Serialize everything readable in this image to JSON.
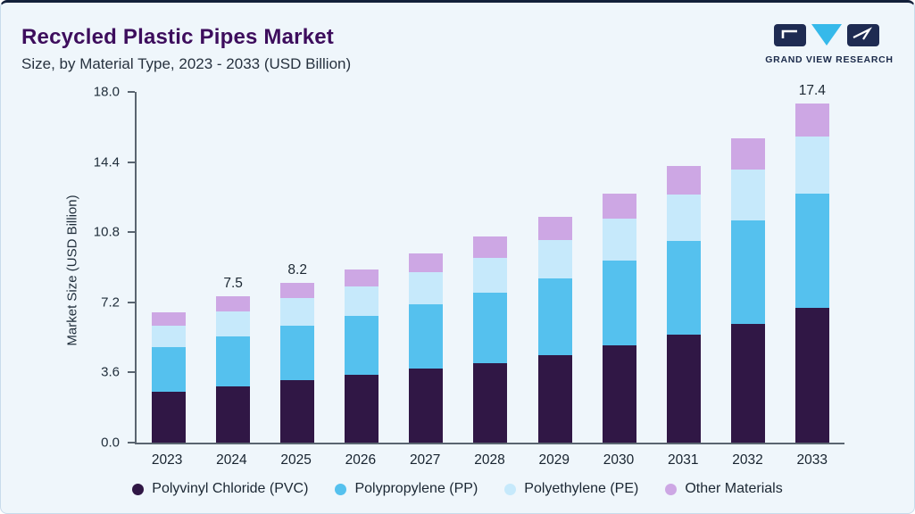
{
  "header": {
    "title": "Recycled Plastic Pipes Market",
    "subtitle": "Size, by Material Type, 2023 - 2033 (USD Billion)",
    "logo_text": "GRAND VIEW RESEARCH"
  },
  "chart_data": {
    "type": "bar",
    "stacked": true,
    "title": "Recycled Plastic Pipes Market Size, by Material Type, 2023 - 2033 (USD Billion)",
    "xlabel": "",
    "ylabel": "Market Size (USD Billion)",
    "ylim": [
      0,
      18.0
    ],
    "ytick_labels": [
      "0.0",
      "3.6",
      "7.2",
      "10.8",
      "14.4",
      "18.0"
    ],
    "grid": false,
    "legend_position": "bottom",
    "categories": [
      "2023",
      "2024",
      "2025",
      "2026",
      "2027",
      "2028",
      "2029",
      "2030",
      "2031",
      "2032",
      "2033"
    ],
    "series": [
      {
        "name": "Polyvinyl Chloride (PVC)",
        "color": "#301745",
        "values": [
          2.6,
          2.9,
          3.2,
          3.5,
          3.8,
          4.1,
          4.5,
          5.0,
          5.55,
          6.1,
          6.9
        ]
      },
      {
        "name": "Polypropylene (PP)",
        "color": "#55c1ee",
        "values": [
          2.3,
          2.55,
          2.8,
          3.0,
          3.3,
          3.6,
          3.95,
          4.35,
          4.8,
          5.3,
          5.9
        ]
      },
      {
        "name": "Polyethylene (PE)",
        "color": "#c6e9fb",
        "values": [
          1.1,
          1.3,
          1.4,
          1.5,
          1.65,
          1.8,
          1.95,
          2.15,
          2.4,
          2.6,
          2.9
        ]
      },
      {
        "name": "Other Materials",
        "color": "#cda7e4",
        "values": [
          0.7,
          0.75,
          0.8,
          0.9,
          0.95,
          1.1,
          1.2,
          1.3,
          1.45,
          1.6,
          1.7
        ]
      }
    ],
    "totals": [
      6.7,
      7.5,
      8.2,
      8.9,
      9.7,
      10.6,
      11.6,
      12.8,
      14.2,
      15.6,
      17.4
    ],
    "bar_labels": [
      "",
      "7.5",
      "8.2",
      "",
      "",
      "",
      "",
      "",
      "",
      "",
      "17.4"
    ]
  },
  "colors": {
    "card_background": "#eff6fb",
    "top_accent": "#13203a",
    "title": "#3d0d5d",
    "axis": "#5a6570"
  }
}
